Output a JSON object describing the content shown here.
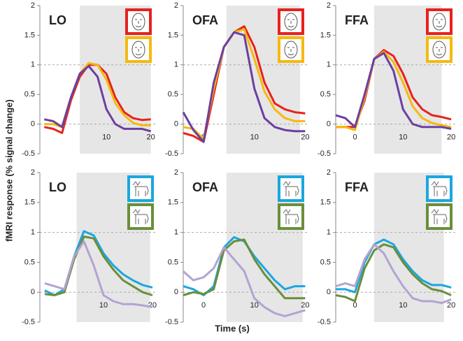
{
  "ylabel": "fMRI response (% signal change)",
  "xlabel": "Time (s)",
  "chart_data": [
    {
      "type": "line",
      "title": "LO",
      "x": [
        -4,
        -2,
        0,
        2,
        4,
        6,
        8,
        10,
        12,
        14,
        16,
        18,
        20
      ],
      "xlim": [
        -5,
        21
      ],
      "ylim": [
        -0.5,
        2
      ],
      "xticks": [
        10,
        20
      ],
      "yticks": [
        2,
        1.5,
        1,
        0.5,
        0,
        -0.5
      ],
      "shade": [
        4,
        20
      ],
      "hlines": [
        0,
        1
      ],
      "series": [
        {
          "color": "#e8211c",
          "values": [
            -0.05,
            -0.08,
            -0.15,
            0.4,
            0.8,
            1.0,
            1.0,
            0.85,
            0.45,
            0.2,
            0.1,
            0.07,
            0.08
          ]
        },
        {
          "color": "#f5b90f",
          "values": [
            0,
            0,
            -0.05,
            0.45,
            0.85,
            1.03,
            1.0,
            0.75,
            0.35,
            0.15,
            0.02,
            -0.02,
            -0.02
          ]
        },
        {
          "color": "#6b3fa0",
          "values": [
            0.08,
            0.05,
            -0.05,
            0.45,
            0.85,
            0.98,
            0.8,
            0.25,
            0,
            -0.08,
            -0.08,
            -0.08,
            -0.12
          ]
        }
      ]
    },
    {
      "type": "line",
      "title": "OFA",
      "x": [
        -4,
        -2,
        0,
        2,
        4,
        6,
        8,
        10,
        12,
        14,
        16,
        18,
        20
      ],
      "xlim": [
        -4,
        20.5
      ],
      "ylim": [
        -0.5,
        2
      ],
      "xticks": [
        0,
        10,
        20
      ],
      "yticks": [
        2,
        1.5,
        1,
        0.5,
        0,
        -0.5
      ],
      "shade": [
        4.5,
        19
      ],
      "hlines": [
        0,
        1
      ],
      "series": [
        {
          "color": "#e8211c",
          "values": [
            -0.15,
            -0.2,
            -0.3,
            0.5,
            1.3,
            1.55,
            1.65,
            1.3,
            0.7,
            0.35,
            0.25,
            0.2,
            0.18
          ]
        },
        {
          "color": "#f5b90f",
          "values": [
            -0.05,
            -0.08,
            -0.25,
            0.6,
            1.3,
            1.55,
            1.6,
            1.1,
            0.55,
            0.25,
            0.1,
            0.05,
            0.05
          ]
        },
        {
          "color": "#6b3fa0",
          "values": [
            0.2,
            -0.1,
            -0.3,
            0.7,
            1.3,
            1.55,
            1.5,
            0.6,
            0.1,
            -0.05,
            -0.1,
            -0.12,
            -0.12
          ]
        }
      ]
    },
    {
      "type": "line",
      "title": "FFA",
      "x": [
        -4,
        -2,
        0,
        2,
        4,
        6,
        8,
        10,
        12,
        14,
        16,
        18,
        20
      ],
      "xlim": [
        -4,
        21
      ],
      "ylim": [
        -0.5,
        2
      ],
      "xticks": [
        0,
        10,
        20
      ],
      "yticks": [
        2,
        1.5,
        1,
        0.5,
        0,
        -0.5
      ],
      "shade": [
        4,
        18
      ],
      "hlines": [
        0,
        1
      ],
      "series": [
        {
          "color": "#e8211c",
          "values": [
            -0.05,
            -0.05,
            -0.05,
            0.4,
            1.1,
            1.25,
            1.15,
            0.85,
            0.45,
            0.25,
            0.15,
            0.12,
            0.08
          ]
        },
        {
          "color": "#f5b90f",
          "values": [
            -0.05,
            -0.05,
            -0.1,
            0.45,
            1.1,
            1.22,
            1.05,
            0.7,
            0.3,
            0.1,
            0.02,
            -0.02,
            -0.05
          ]
        },
        {
          "color": "#6b3fa0",
          "values": [
            0.15,
            0.1,
            -0.05,
            0.5,
            1.1,
            1.2,
            0.9,
            0.25,
            0,
            -0.05,
            -0.05,
            -0.05,
            -0.08
          ]
        }
      ]
    },
    {
      "type": "line",
      "title": "LO",
      "x": [
        -2,
        0,
        2,
        4,
        6,
        8,
        10,
        12,
        14,
        16,
        18,
        20
      ],
      "xlim": [
        -3,
        21
      ],
      "ylim": [
        -0.5,
        2
      ],
      "xticks": [
        10,
        20
      ],
      "yticks": [
        2,
        1.5,
        1,
        0.5,
        0,
        -0.5
      ],
      "shade": [
        4.5,
        19.5
      ],
      "hlines": [
        0,
        1
      ],
      "series": [
        {
          "color": "#1aa7e0",
          "values": [
            0.03,
            -0.05,
            0.05,
            0.6,
            1.02,
            0.95,
            0.65,
            0.45,
            0.3,
            0.2,
            0.12,
            0.08
          ]
        },
        {
          "color": "#6a8e3a",
          "values": [
            -0.03,
            -0.05,
            0,
            0.55,
            0.93,
            0.9,
            0.6,
            0.38,
            0.2,
            0.1,
            0,
            -0.05
          ]
        },
        {
          "color": "#b3a3d2",
          "values": [
            0.15,
            0.1,
            0.05,
            0.6,
            0.85,
            0.45,
            -0.05,
            -0.15,
            -0.2,
            -0.2,
            -0.22,
            -0.25
          ]
        }
      ]
    },
    {
      "type": "line",
      "title": "OFA",
      "x": [
        -4,
        -2,
        0,
        2,
        4,
        6,
        8,
        10,
        12,
        14,
        16,
        18,
        20
      ],
      "xlim": [
        -4,
        20.5
      ],
      "ylim": [
        -0.5,
        2
      ],
      "xticks": [
        0,
        10,
        20
      ],
      "yticks": [
        2,
        1.5,
        1,
        0.5,
        0,
        -0.5
      ],
      "shade": [
        4.5,
        19.5
      ],
      "hlines": [
        0,
        1
      ],
      "series": [
        {
          "color": "#1aa7e0",
          "values": [
            0.1,
            0.05,
            -0.05,
            0.1,
            0.75,
            0.92,
            0.85,
            0.6,
            0.4,
            0.2,
            0.05,
            0.1,
            0.1
          ]
        },
        {
          "color": "#6a8e3a",
          "values": [
            -0.05,
            0,
            -0.03,
            0.05,
            0.7,
            0.85,
            0.88,
            0.55,
            0.3,
            0.1,
            -0.1,
            -0.1,
            -0.1
          ]
        },
        {
          "color": "#b3a3d2",
          "values": [
            0.35,
            0.2,
            0.25,
            0.4,
            0.75,
            0.55,
            0.35,
            -0.1,
            -0.25,
            -0.35,
            -0.4,
            -0.35,
            -0.3
          ]
        }
      ]
    },
    {
      "type": "line",
      "title": "FFA",
      "x": [
        -4,
        -2,
        0,
        2,
        4,
        6,
        8,
        10,
        12,
        14,
        16,
        18,
        20
      ],
      "xlim": [
        -4,
        21
      ],
      "ylim": [
        -0.5,
        2
      ],
      "xticks": [
        0,
        10,
        20
      ],
      "yticks": [
        2,
        1.5,
        1,
        0.5,
        0,
        -0.5
      ],
      "shade": [
        4,
        18.5
      ],
      "hlines": [
        0,
        1
      ],
      "series": [
        {
          "color": "#1aa7e0",
          "values": [
            0.05,
            0.05,
            0,
            0.5,
            0.8,
            0.88,
            0.8,
            0.55,
            0.35,
            0.2,
            0.12,
            0.12,
            0.08
          ]
        },
        {
          "color": "#6a8e3a",
          "values": [
            -0.05,
            -0.08,
            -0.15,
            0.4,
            0.7,
            0.8,
            0.75,
            0.5,
            0.3,
            0.15,
            0.05,
            0.02,
            -0.05
          ]
        },
        {
          "color": "#b3a3d2",
          "values": [
            0.1,
            0.15,
            0.1,
            0.55,
            0.8,
            0.65,
            0.35,
            0.1,
            -0.1,
            -0.15,
            -0.15,
            -0.18,
            -0.12
          ]
        }
      ]
    }
  ]
}
